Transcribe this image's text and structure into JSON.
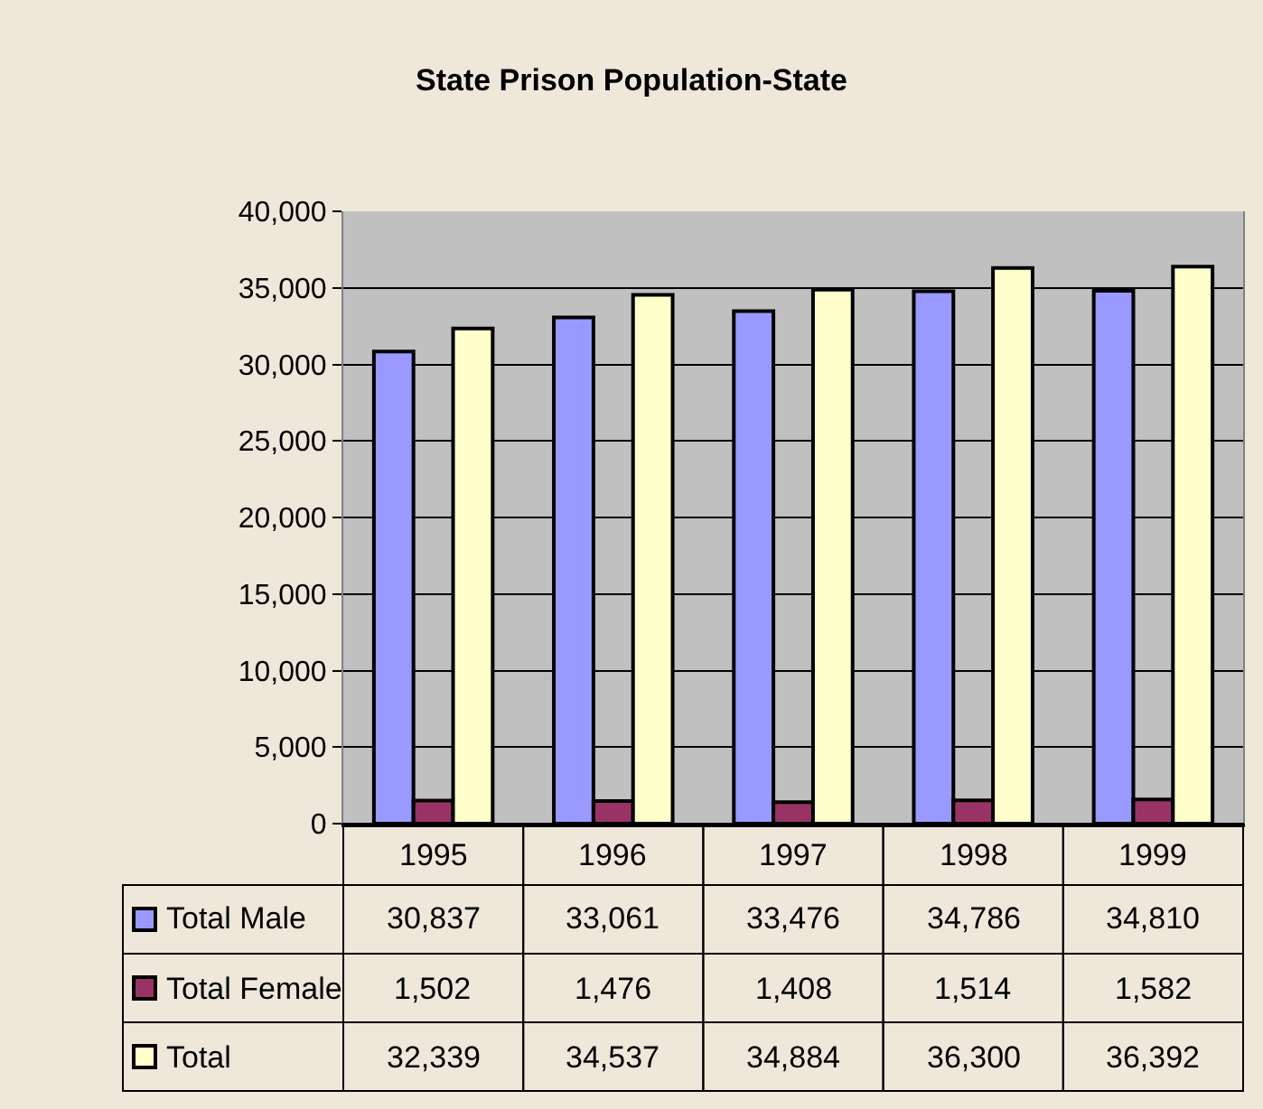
{
  "chart_data": {
    "type": "bar",
    "title": "State Prison Population-State",
    "categories": [
      "1995",
      "1996",
      "1997",
      "1998",
      "1999"
    ],
    "series": [
      {
        "name": "Total Male",
        "color": "#9999ff",
        "values": [
          30837,
          33061,
          33476,
          34786,
          34810
        ],
        "value_labels": [
          "30,837",
          "33,061",
          "33,476",
          "34,786",
          "34,810"
        ]
      },
      {
        "name": "Total Female",
        "color": "#993366",
        "values": [
          1502,
          1476,
          1408,
          1514,
          1582
        ],
        "value_labels": [
          "1,502",
          "1,476",
          "1,408",
          "1,514",
          "1,582"
        ]
      },
      {
        "name": "Total",
        "color": "#ffffcc",
        "values": [
          32339,
          34537,
          34884,
          36300,
          36392
        ],
        "value_labels": [
          "32,339",
          "34,537",
          "34,884",
          "36,300",
          "36,392"
        ]
      }
    ],
    "ylim": [
      0,
      40000
    ],
    "yticks": [
      {
        "value": 0,
        "label": "0"
      },
      {
        "value": 5000,
        "label": "5,000"
      },
      {
        "value": 10000,
        "label": "10,000"
      },
      {
        "value": 15000,
        "label": "15,000"
      },
      {
        "value": 20000,
        "label": "20,000"
      },
      {
        "value": 25000,
        "label": "25,000"
      },
      {
        "value": 30000,
        "label": "30,000"
      },
      {
        "value": 35000,
        "label": "35,000"
      },
      {
        "value": 40000,
        "label": "40,000"
      }
    ],
    "grid": "y",
    "legend": "bottom"
  }
}
